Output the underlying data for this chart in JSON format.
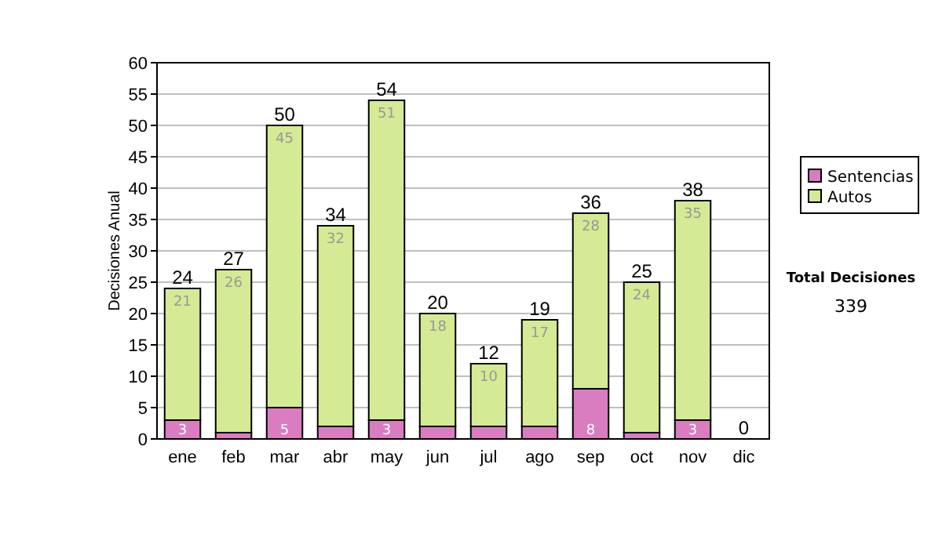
{
  "chart_data": {
    "type": "bar",
    "stacked": true,
    "ylabel": "Decisiones Anual",
    "categories": [
      "ene",
      "feb",
      "mar",
      "abr",
      "may",
      "jun",
      "jul",
      "ago",
      "sep",
      "oct",
      "nov",
      "dic"
    ],
    "series": [
      {
        "name": "Sentencias",
        "color": "#d97cc0",
        "values": [
          3,
          1,
          5,
          2,
          3,
          2,
          2,
          2,
          8,
          1,
          3,
          0
        ],
        "value_labels": [
          "3",
          null,
          "5",
          null,
          "3",
          null,
          null,
          null,
          "8",
          null,
          "3",
          null
        ]
      },
      {
        "name": "Autos",
        "color": "#d4ea94",
        "values": [
          21,
          26,
          45,
          32,
          51,
          18,
          10,
          17,
          28,
          24,
          35,
          0
        ],
        "value_labels": [
          "21",
          "26",
          "45",
          "32",
          "51",
          "18",
          "10",
          "17",
          "28",
          "24",
          "35",
          null
        ]
      }
    ],
    "totals": [
      "24",
      "27",
      "50",
      "34",
      "54",
      "20",
      "12",
      "19",
      "36",
      "25",
      "38",
      "0"
    ],
    "ylim": [
      0,
      60
    ],
    "yticks": [
      0,
      5,
      10,
      15,
      20,
      25,
      30,
      35,
      40,
      45,
      50,
      55,
      60
    ],
    "grid": "y",
    "legend": "right",
    "annotations": [
      "Total Decisiones",
      "339"
    ]
  }
}
